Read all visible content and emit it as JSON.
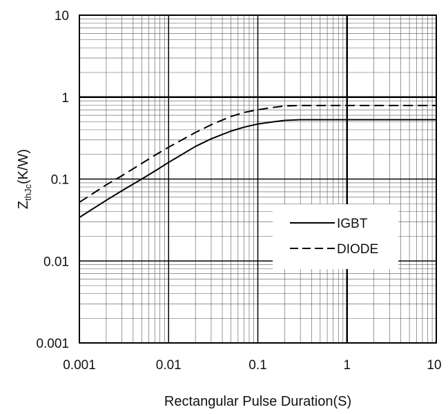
{
  "chart_data": {
    "type": "line",
    "title": "",
    "xlabel": "Rectangular Pulse Duration(S)",
    "ylabel": {
      "base": "Z",
      "sub": "thJc",
      "rest": "(K/W)"
    },
    "x_scale": "log",
    "y_scale": "log",
    "xlim": [
      0.001,
      10
    ],
    "ylim": [
      0.001,
      10
    ],
    "x_tick_labels": [
      "0.001",
      "0.01",
      "0.1",
      "1",
      "10"
    ],
    "y_tick_labels": [
      "0.001",
      "0.01",
      "0.1",
      "1",
      "10"
    ],
    "x_ticks": [
      0.001,
      0.01,
      0.1,
      1,
      10
    ],
    "y_ticks": [
      0.001,
      0.01,
      0.1,
      1,
      10
    ],
    "grid": true,
    "legend_position": "lower-right",
    "series": [
      {
        "name": "IGBT",
        "style": "solid",
        "color": "#000000",
        "x": [
          0.001,
          0.002,
          0.003,
          0.005,
          0.007,
          0.01,
          0.02,
          0.03,
          0.05,
          0.07,
          0.1,
          0.15,
          0.2,
          0.3,
          0.5,
          1,
          2,
          5,
          10
        ],
        "y": [
          0.034,
          0.055,
          0.072,
          0.1,
          0.125,
          0.16,
          0.25,
          0.31,
          0.385,
          0.43,
          0.47,
          0.5,
          0.52,
          0.53,
          0.53,
          0.53,
          0.53,
          0.53,
          0.53
        ]
      },
      {
        "name": "DIODE",
        "style": "dashed",
        "color": "#000000",
        "x": [
          0.001,
          0.002,
          0.003,
          0.005,
          0.007,
          0.01,
          0.02,
          0.03,
          0.05,
          0.07,
          0.1,
          0.15,
          0.2,
          0.3,
          0.5,
          1,
          2,
          5,
          10
        ],
        "y": [
          0.052,
          0.085,
          0.11,
          0.155,
          0.195,
          0.245,
          0.37,
          0.46,
          0.58,
          0.65,
          0.7,
          0.75,
          0.78,
          0.79,
          0.79,
          0.79,
          0.79,
          0.79,
          0.79
        ]
      }
    ]
  }
}
